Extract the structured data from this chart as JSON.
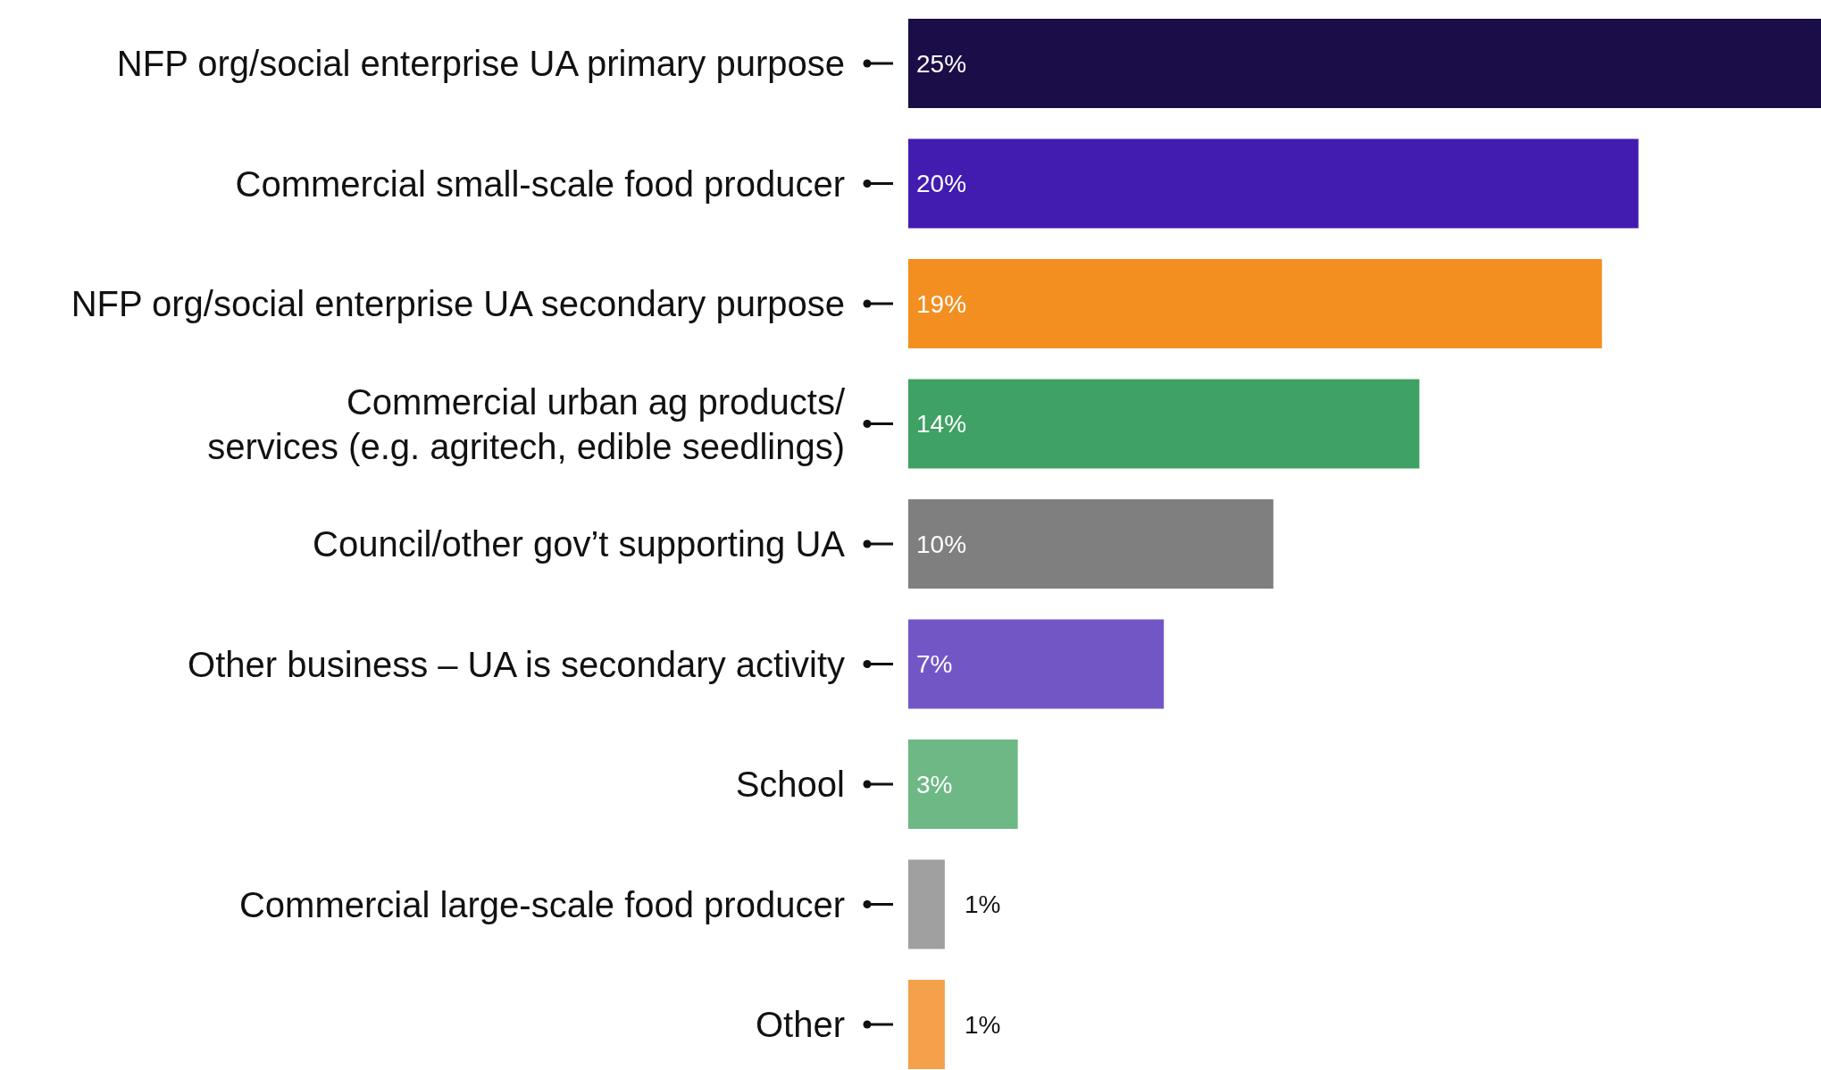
{
  "chart_data": {
    "type": "bar",
    "orientation": "horizontal",
    "categories": [
      "NFP org/social enterprise UA primary purpose",
      "Commercial small-scale food producer",
      "NFP org/social enterprise UA secondary purpose",
      "Commercial urban ag products/ services (e.g. agritech, edible seedlings)",
      "Council/other gov’t supporting UA",
      "Other business – UA is secondary activity",
      "School",
      "Commercial large-scale food producer",
      "Other"
    ],
    "values": [
      25,
      20,
      19,
      14,
      10,
      7,
      3,
      1,
      1
    ],
    "value_labels": [
      "25%",
      "20%",
      "19%",
      "14%",
      "10%",
      "7%",
      "3%",
      "1%",
      "1%"
    ],
    "colors": [
      "#1b0d47",
      "#421bb0",
      "#f28f20",
      "#3fa163",
      "#7f7f7f",
      "#7356c6",
      "#6db885",
      "#a0a0a0",
      "#f5a04a"
    ],
    "xlim": [
      0,
      25
    ],
    "tick_labels": "y"
  }
}
